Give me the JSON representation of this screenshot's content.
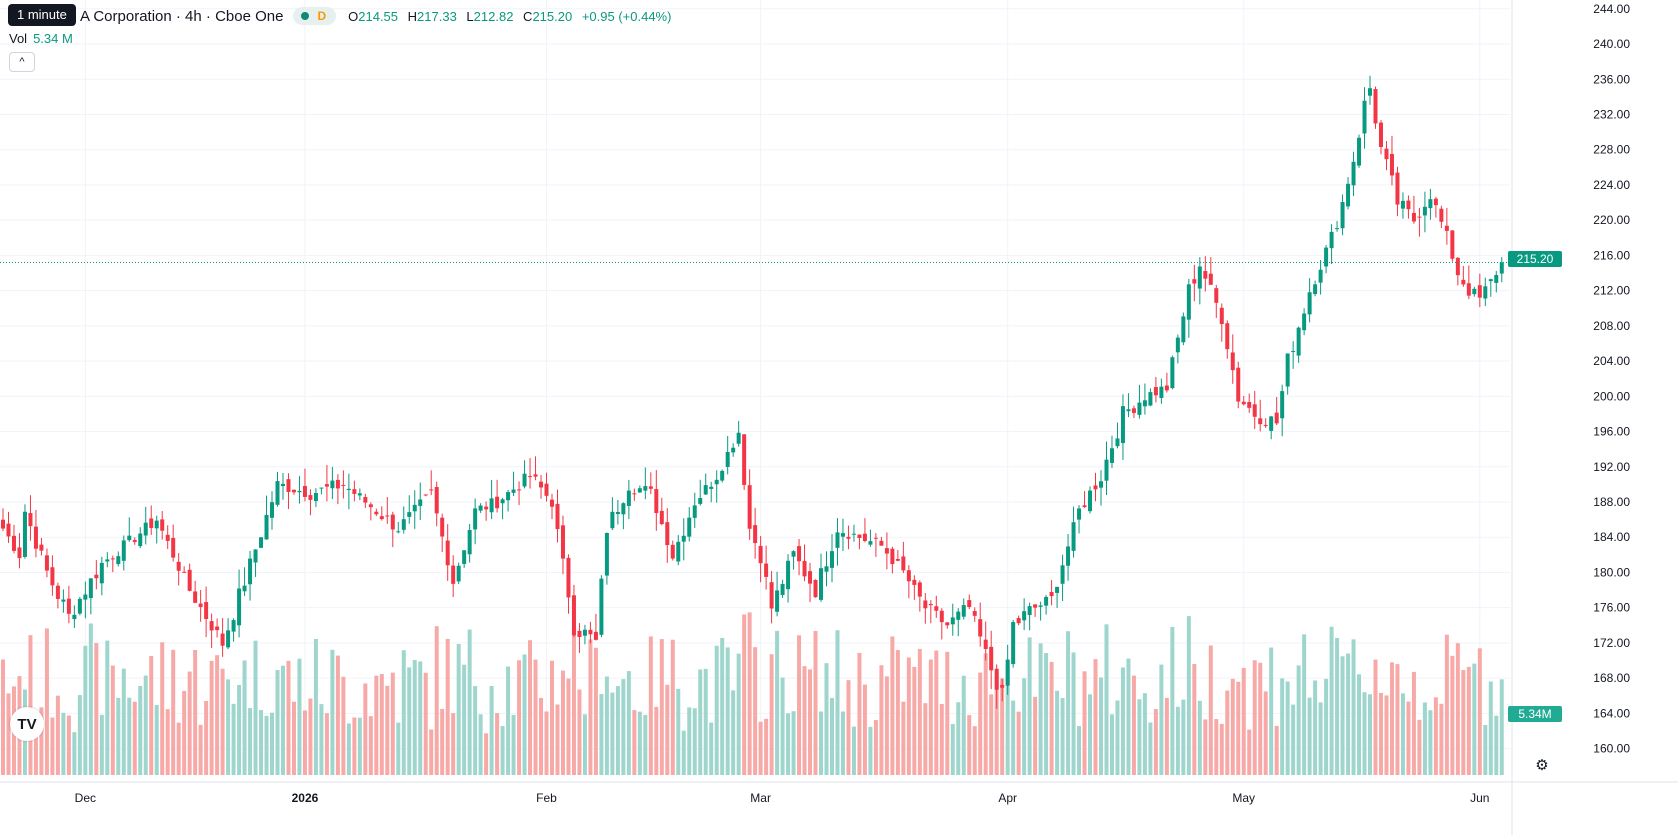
{
  "header": {
    "title": "A Corporation · 4h · Cboe One",
    "market_flag": "D",
    "tooltip": "1 minute",
    "ohlc": [
      {
        "key": "O",
        "value": "214.55"
      },
      {
        "key": "H",
        "value": "217.33"
      },
      {
        "key": "L",
        "value": "212.82"
      },
      {
        "key": "C",
        "value": "215.20"
      }
    ],
    "change": "+0.95 (+0.44%)",
    "volume_label": "Vol",
    "volume_value": "5.34 M",
    "collapse_glyph": "^"
  },
  "price_scale": {
    "current_price_label": "215.20",
    "current_volume_label": "5.34M"
  },
  "logo_text": "TV",
  "icons": {
    "settings": "gear-icon",
    "collapse": "chevron-up-icon",
    "logo": "tradingview-logo"
  },
  "colors": {
    "up": "#089981",
    "down": "#f23645",
    "up_volume": "#9ed6cd",
    "down_volume": "#f7a9a7",
    "last_price": "#089981"
  },
  "chart_data": {
    "type": "candlestick",
    "timeframe": "4h",
    "ylim": [
      157,
      245
    ],
    "y_ticks": [
      "160.00",
      "164.00",
      "168.00",
      "172.00",
      "176.00",
      "180.00",
      "184.00",
      "188.00",
      "192.00",
      "196.00",
      "200.00",
      "204.00",
      "208.00",
      "212.00",
      "216.00",
      "220.00",
      "224.00",
      "228.00",
      "232.00",
      "236.00",
      "240.00",
      "244.00"
    ],
    "x_ticks": [
      {
        "label": "Dec",
        "bar": 15
      },
      {
        "label": "2026",
        "bar": 55
      },
      {
        "label": "Feb",
        "bar": 99
      },
      {
        "label": "Mar",
        "bar": 138
      },
      {
        "label": "Apr",
        "bar": 183
      },
      {
        "label": "May",
        "bar": 226
      },
      {
        "label": "Jun",
        "bar": 269
      }
    ],
    "bar_count": 266,
    "last_price": 215.2,
    "grid": true,
    "anchors": [
      [
        0,
        185,
        0.6
      ],
      [
        3,
        182,
        0.6
      ],
      [
        4,
        187,
        0.8
      ],
      [
        8,
        180,
        1.0
      ],
      [
        12,
        175,
        0.8
      ],
      [
        18,
        181,
        0.6
      ],
      [
        24,
        184,
        0.6
      ],
      [
        28,
        186,
        0.6
      ],
      [
        34,
        178,
        0.7
      ],
      [
        40,
        172,
        0.9
      ],
      [
        44,
        179,
        0.8
      ],
      [
        50,
        190,
        0.6
      ],
      [
        56,
        189,
        0.7
      ],
      [
        62,
        190,
        0.6
      ],
      [
        68,
        187,
        0.7
      ],
      [
        72,
        185,
        0.6
      ],
      [
        78,
        189,
        0.6
      ],
      [
        82,
        179,
        0.7
      ],
      [
        86,
        187,
        0.6
      ],
      [
        90,
        188,
        0.6
      ],
      [
        96,
        191,
        0.7
      ],
      [
        100,
        188,
        0.6
      ],
      [
        104,
        174,
        1.0
      ],
      [
        108,
        172,
        0.9
      ],
      [
        110,
        185,
        0.8
      ],
      [
        114,
        190,
        0.7
      ],
      [
        118,
        189,
        0.6
      ],
      [
        122,
        182,
        0.8
      ],
      [
        126,
        188,
        0.6
      ],
      [
        130,
        191,
        0.6
      ],
      [
        134,
        196,
        0.6
      ],
      [
        136,
        185,
        0.8
      ],
      [
        138,
        182,
        0.8
      ],
      [
        140,
        176,
        0.8
      ],
      [
        144,
        182,
        0.8
      ],
      [
        148,
        178,
        0.8
      ],
      [
        152,
        185,
        0.6
      ],
      [
        156,
        184,
        0.6
      ],
      [
        160,
        183,
        0.6
      ],
      [
        164,
        180,
        0.6
      ],
      [
        168,
        176,
        0.7
      ],
      [
        172,
        174,
        0.8
      ],
      [
        176,
        176,
        0.7
      ],
      [
        180,
        169,
        0.8
      ],
      [
        182,
        166,
        0.8
      ],
      [
        184,
        174,
        1.0
      ],
      [
        188,
        176,
        0.6
      ],
      [
        191,
        177,
        0.6
      ],
      [
        196,
        187,
        0.7
      ],
      [
        200,
        191,
        0.9
      ],
      [
        204,
        198,
        0.8
      ],
      [
        208,
        200,
        0.6
      ],
      [
        212,
        201,
        0.7
      ],
      [
        216,
        212,
        0.9
      ],
      [
        218,
        215,
        0.7
      ],
      [
        222,
        209,
        0.8
      ],
      [
        225,
        200,
        1.0
      ],
      [
        228,
        198,
        0.8
      ],
      [
        232,
        197,
        0.7
      ],
      [
        234,
        204,
        0.9
      ],
      [
        238,
        212,
        0.7
      ],
      [
        242,
        218,
        0.8
      ],
      [
        244,
        222,
        0.7
      ],
      [
        246,
        227,
        1.0
      ],
      [
        248,
        233,
        1.0
      ],
      [
        249,
        235,
        0.8
      ],
      [
        251,
        228,
        1.0
      ],
      [
        254,
        222,
        0.8
      ],
      [
        257,
        220,
        0.7
      ],
      [
        260,
        223,
        0.7
      ],
      [
        263,
        218,
        0.7
      ],
      [
        265,
        214,
        0.7
      ],
      [
        267,
        212,
        0.7
      ],
      [
        269,
        211,
        0.7
      ],
      [
        271,
        213,
        0.6
      ],
      [
        273,
        215.2,
        0.8
      ]
    ],
    "volume_ylim_millions": [
      0,
      12
    ],
    "last_volume_millions": 5.34
  }
}
